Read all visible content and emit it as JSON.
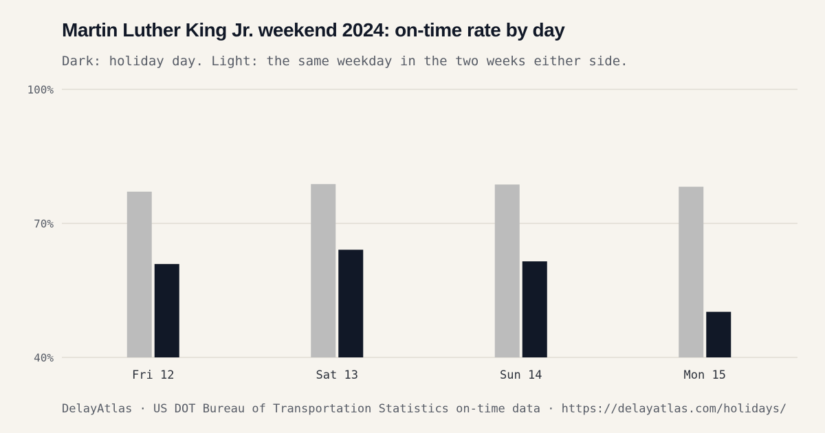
{
  "title": "Martin Luther King Jr. weekend 2024: on-time rate by day",
  "subtitle": "Dark: holiday day. Light: the same weekday in the two weeks either side.",
  "footer": "DelayAtlas · US DOT Bureau of Transportation Statistics on-time data · https://delayatlas.com/holidays/",
  "colors": {
    "baseline": "#bcbcbc",
    "holiday": "#111827",
    "grid": "#e6e2da",
    "tick_text": "#575c66"
  },
  "chart_data": {
    "type": "bar",
    "categories": [
      "Fri 12",
      "Sat 13",
      "Sun 14",
      "Mon 15"
    ],
    "series": [
      {
        "values": [
          77.1,
          78.8,
          78.7,
          78.2
        ]
      },
      {
        "values": [
          60.9,
          64.1,
          61.5,
          50.2
        ]
      }
    ],
    "yticks": [
      "100%",
      "70%",
      "40%"
    ],
    "ytick_values": [
      100,
      70,
      40
    ],
    "ylim": [
      40,
      100
    ],
    "grid": true,
    "legend": "none"
  }
}
